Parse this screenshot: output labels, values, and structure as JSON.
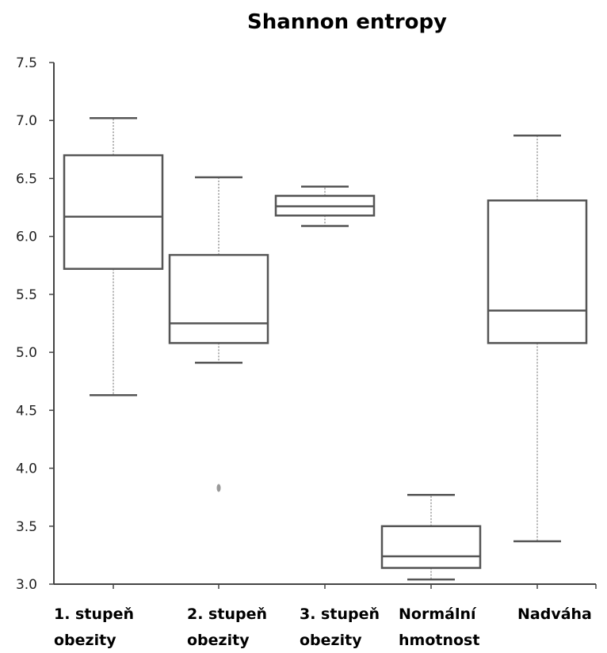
{
  "chart_data": {
    "type": "boxplot",
    "title": "Shannon entropy",
    "xlabel": "",
    "ylabel": "",
    "ylim": [
      3.0,
      7.5
    ],
    "yticks": [
      "3.0",
      "3.5",
      "4.0",
      "4.5",
      "5.0",
      "5.5",
      "6.0",
      "6.5",
      "7.0",
      "7.5"
    ],
    "grid": false,
    "categories": [
      [
        "1. stupeň",
        "obezity"
      ],
      [
        "2. stupeň",
        "obezity"
      ],
      [
        "3. stupeň",
        "obezity"
      ],
      [
        "Normální",
        "hmotnost"
      ],
      [
        "Nadváha"
      ]
    ],
    "boxes": [
      {
        "whisker_low": 4.63,
        "q1": 5.72,
        "median": 6.17,
        "q3": 6.7,
        "whisker_high": 7.02,
        "outliers": []
      },
      {
        "whisker_low": 4.91,
        "q1": 5.08,
        "median": 5.25,
        "q3": 5.84,
        "whisker_high": 6.51,
        "outliers": [
          3.83
        ]
      },
      {
        "whisker_low": 6.09,
        "q1": 6.18,
        "median": 6.26,
        "q3": 6.35,
        "whisker_high": 6.43,
        "outliers": []
      },
      {
        "whisker_low": 3.04,
        "q1": 3.14,
        "median": 3.24,
        "q3": 3.5,
        "whisker_high": 3.77,
        "outliers": []
      },
      {
        "whisker_low": 3.37,
        "q1": 5.08,
        "median": 5.36,
        "q3": 6.31,
        "whisker_high": 6.87,
        "outliers": []
      }
    ],
    "colors": {
      "box": "#555555",
      "whisker": "#999999",
      "axis": "#444444"
    }
  }
}
